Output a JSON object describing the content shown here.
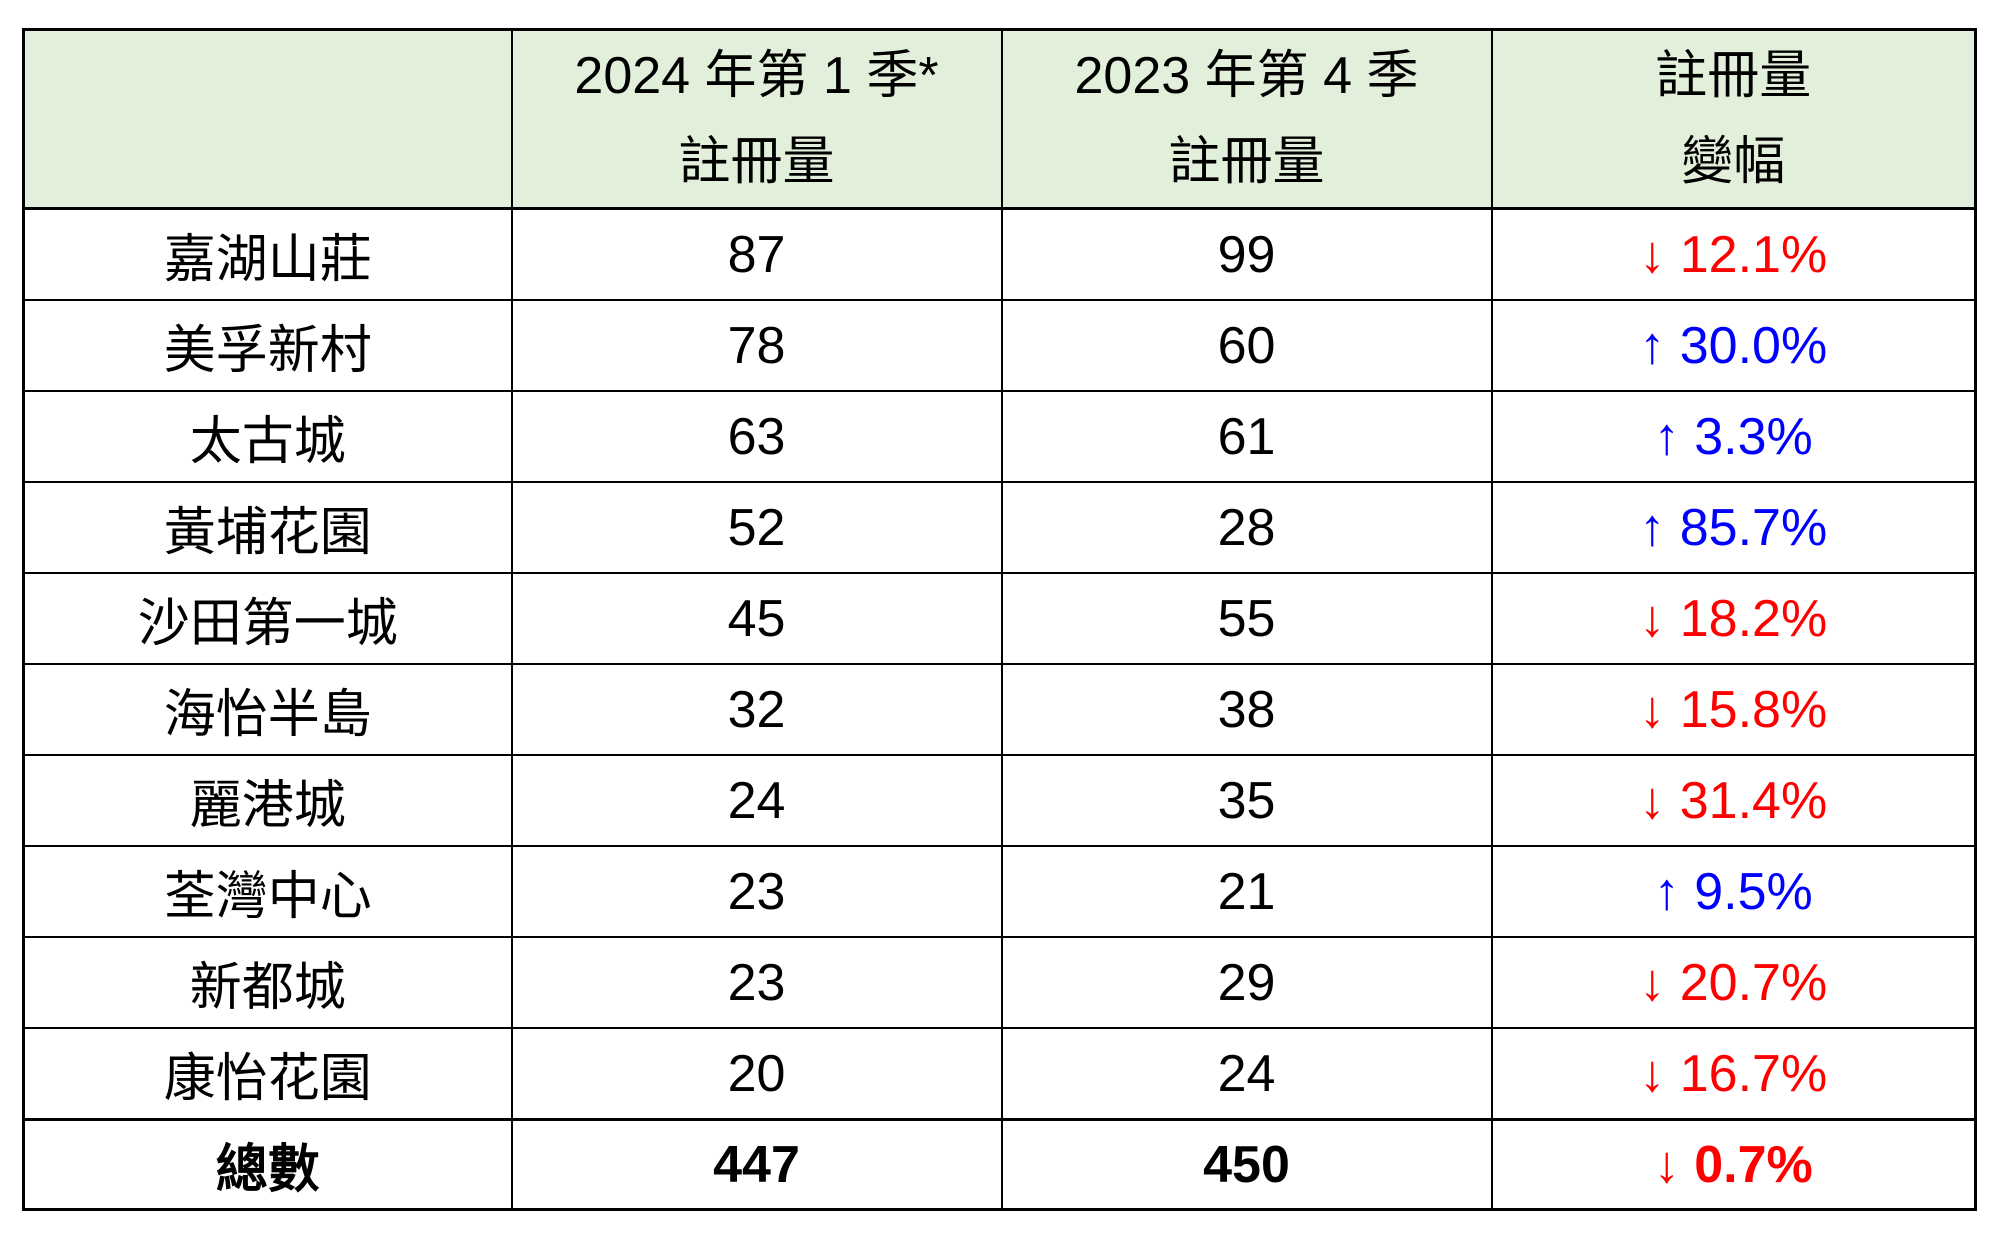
{
  "colors": {
    "up": "#0000FF",
    "down": "#FF0000",
    "header_bg": "#E2EFDA",
    "border": "#000000"
  },
  "table": {
    "columns": [
      {
        "header_line1": "",
        "header_line2": ""
      },
      {
        "header_line1": "2024 年第 1 季*",
        "header_line2": "註冊量"
      },
      {
        "header_line1": "2023 年第 4 季",
        "header_line2": "註冊量"
      },
      {
        "header_line1": "註冊量",
        "header_line2": "變幅"
      }
    ],
    "rows": [
      {
        "name": "嘉湖山莊",
        "q1_2024": "87",
        "q4_2023": "99",
        "change": "↓ 12.1%",
        "direction": "down"
      },
      {
        "name": "美孚新村",
        "q1_2024": "78",
        "q4_2023": "60",
        "change": "↑ 30.0%",
        "direction": "up"
      },
      {
        "name": "太古城",
        "q1_2024": "63",
        "q4_2023": "61",
        "change": "↑ 3.3%",
        "direction": "up"
      },
      {
        "name": "黃埔花園",
        "q1_2024": "52",
        "q4_2023": "28",
        "change": "↑ 85.7%",
        "direction": "up"
      },
      {
        "name": "沙田第一城",
        "q1_2024": "45",
        "q4_2023": "55",
        "change": "↓ 18.2%",
        "direction": "down"
      },
      {
        "name": "海怡半島",
        "q1_2024": "32",
        "q4_2023": "38",
        "change": "↓ 15.8%",
        "direction": "down"
      },
      {
        "name": "麗港城",
        "q1_2024": "24",
        "q4_2023": "35",
        "change": "↓ 31.4%",
        "direction": "down"
      },
      {
        "name": "荃灣中心",
        "q1_2024": "23",
        "q4_2023": "21",
        "change": "↑ 9.5%",
        "direction": "up"
      },
      {
        "name": "新都城",
        "q1_2024": "23",
        "q4_2023": "29",
        "change": "↓ 20.7%",
        "direction": "down"
      },
      {
        "name": "康怡花園",
        "q1_2024": "20",
        "q4_2023": "24",
        "change": "↓ 16.7%",
        "direction": "down"
      }
    ],
    "totals": {
      "name": "總數",
      "q1_2024": "447",
      "q4_2023": "450",
      "change": "↓ 0.7%",
      "direction": "down"
    }
  },
  "chart_data": {
    "type": "table",
    "columns": [
      "",
      "2024 年第 1 季* 註冊量",
      "2023 年第 4 季 註冊量",
      "註冊量變幅"
    ],
    "rows": [
      [
        "嘉湖山莊",
        87,
        99,
        "-12.1%"
      ],
      [
        "美孚新村",
        78,
        60,
        "+30.0%"
      ],
      [
        "太古城",
        63,
        61,
        "+3.3%"
      ],
      [
        "黃埔花園",
        52,
        28,
        "+85.7%"
      ],
      [
        "沙田第一城",
        45,
        55,
        "-18.2%"
      ],
      [
        "海怡半島",
        32,
        38,
        "-15.8%"
      ],
      [
        "麗港城",
        24,
        35,
        "-31.4%"
      ],
      [
        "荃灣中心",
        23,
        21,
        "+9.5%"
      ],
      [
        "新都城",
        23,
        29,
        "-20.7%"
      ],
      [
        "康怡花園",
        20,
        24,
        "-16.7%"
      ],
      [
        "總數",
        447,
        450,
        "-0.7%"
      ]
    ],
    "notes": "down changes rendered red, up changes rendered blue; header background light green"
  }
}
